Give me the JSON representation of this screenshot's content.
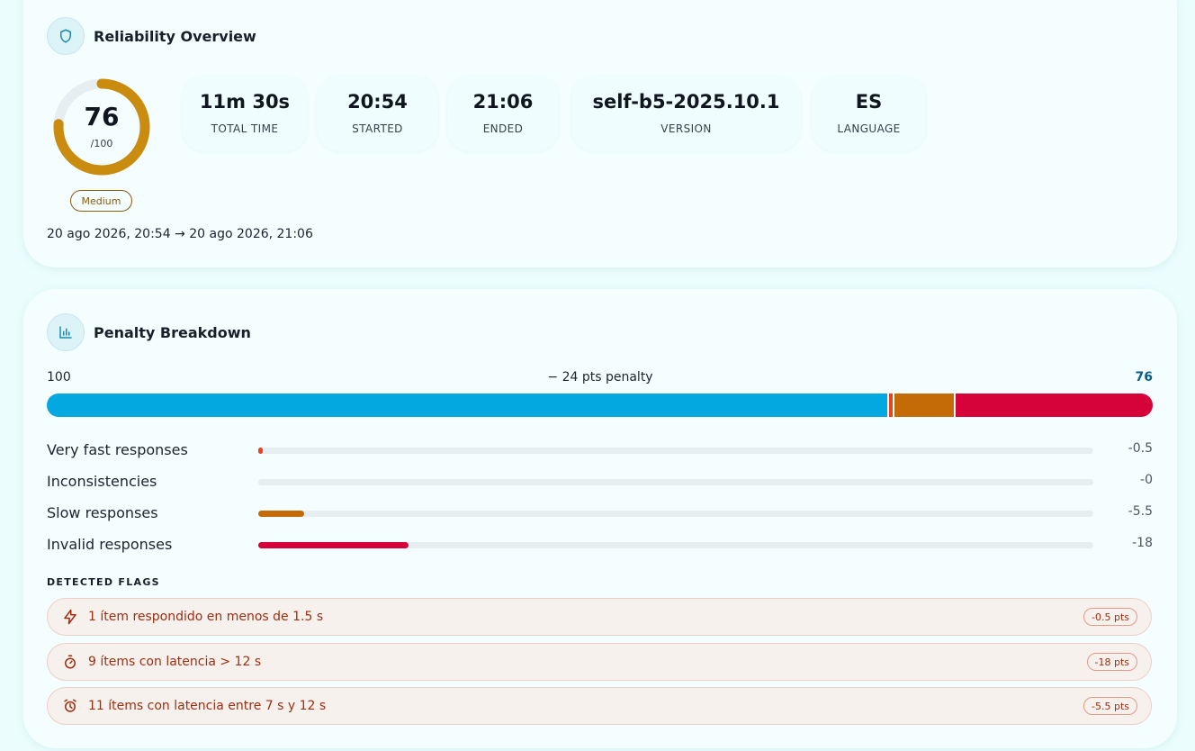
{
  "overview": {
    "title": "Reliability Overview",
    "icon": "shield-icon",
    "score": {
      "value": "76",
      "denominator": "/100",
      "fraction": 0.76,
      "level": "Medium",
      "color": "#c98c0e"
    },
    "date_range": "20 ago 2026, 20:54 → 20 ago 2026, 21:06",
    "stats": [
      {
        "value": "11m 30s",
        "label": "TOTAL TIME"
      },
      {
        "value": "20:54",
        "label": "STARTED"
      },
      {
        "value": "21:06",
        "label": "ENDED"
      },
      {
        "value": "self-b5-2025.10.1",
        "label": "VERSION"
      },
      {
        "value": "ES",
        "label": "LANGUAGE"
      }
    ]
  },
  "penalty": {
    "title": "Penalty Breakdown",
    "icon": "bar-chart-icon",
    "scale_start": "100",
    "summary": "− 24 pts penalty",
    "scale_end": "76",
    "segments": [
      {
        "name": "score",
        "percent": 76,
        "color": "#04a8e0"
      },
      {
        "name": "very-fast",
        "percent": 0.5,
        "color": "#e8441b"
      },
      {
        "name": "inconsistencies",
        "percent": 0,
        "color": "#888888"
      },
      {
        "name": "slow",
        "percent": 5.5,
        "color": "#c46a06"
      },
      {
        "name": "invalid",
        "percent": 18,
        "color": "#d5033a"
      }
    ],
    "rows": [
      {
        "label": "Very fast responses",
        "value": "-0.5",
        "fill_percent": 0.5,
        "color": "#e8441b"
      },
      {
        "label": "Inconsistencies",
        "value": "-0",
        "fill_percent": 0,
        "color": "#888888"
      },
      {
        "label": "Slow responses",
        "value": "-5.5",
        "fill_percent": 5.5,
        "color": "#c46a06"
      },
      {
        "label": "Invalid responses",
        "value": "-18",
        "fill_percent": 18,
        "color": "#d5033a"
      }
    ],
    "flags_title": "DETECTED FLAGS",
    "flags": [
      {
        "icon": "lightning-icon",
        "text": "1 ítem respondido en menos de 1.5 s",
        "badge": "-0.5 pts"
      },
      {
        "icon": "stopwatch-icon",
        "text": "9 ítems con latencia > 12 s",
        "badge": "-18 pts"
      },
      {
        "icon": "alarm-clock-icon",
        "text": "11 ítems con latencia entre 7 s y 12 s",
        "badge": "-5.5 pts"
      }
    ]
  }
}
